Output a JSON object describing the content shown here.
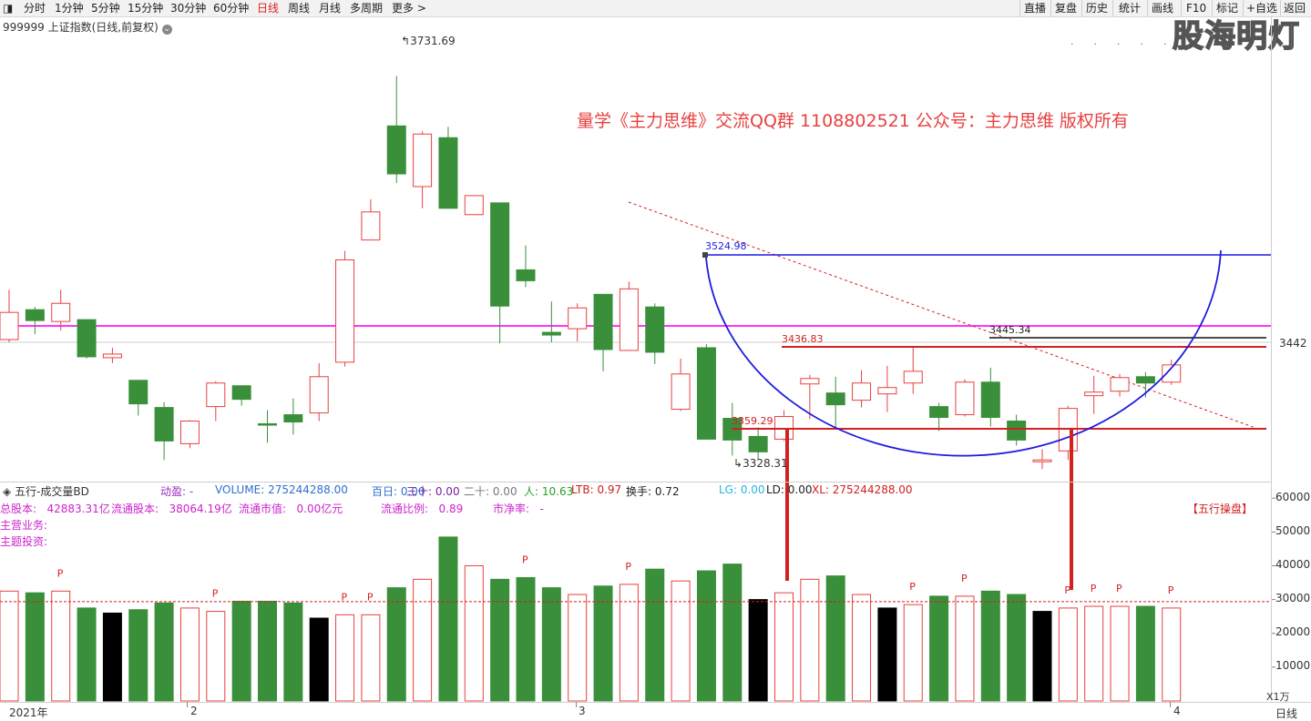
{
  "toolbar": {
    "periods": [
      "分时",
      "1分钟",
      "5分钟",
      "15分钟",
      "30分钟",
      "60分钟",
      "日线",
      "周线",
      "月线",
      "多周期",
      "更多 >"
    ],
    "active_period": "日线",
    "right_buttons": [
      "直播",
      "复盘",
      "历史",
      "统计",
      "画线",
      "F10",
      "标记",
      "+自选",
      "返回"
    ]
  },
  "symbol_title": "999999 上证指数(日线,前复权)",
  "watermark": "股海明灯",
  "copyright": "量学《主力思维》交流QQ群 1108802521  公众号：主力思维 版权所有",
  "price_labels": {
    "high": "3731.69",
    "low": "3328.31",
    "gap_top": "3524.98",
    "mid": "3436.83",
    "mid2": "3445.34",
    "bottom": "3359.29",
    "axis_current": "3442"
  },
  "lower_panel": {
    "indicator": "五行-成交量BD",
    "fields": [
      {
        "label": "动盈:",
        "value": "-",
        "color": "#9b30c0"
      },
      {
        "label": "VOLUME:",
        "value": "275244288.00",
        "color": "#2f6fd0"
      },
      {
        "label": "百日:",
        "value": "0.00",
        "color": "#2f6fd0"
      },
      {
        "label": "三十:",
        "value": "0.00",
        "color": "#7a1fa0"
      },
      {
        "label": "二十:",
        "value": "0.00",
        "color": "#777"
      },
      {
        "label": "人:",
        "value": "10.63",
        "color": "#2a9d2a"
      },
      {
        "label": "LTB:",
        "value": "0.97",
        "color": "#d02020"
      },
      {
        "label": "换手:",
        "value": "0.72",
        "color": "#222"
      },
      {
        "label": "LG:",
        "value": "0.00",
        "color": "#29b6e0"
      },
      {
        "label": "LD:",
        "value": "0.00",
        "color": "#222"
      },
      {
        "label": "XL:",
        "value": "275244288.00",
        "color": "#d02020"
      }
    ],
    "fundamentals": [
      {
        "label": "总股本:",
        "value": "42883.31亿"
      },
      {
        "label": "流通股本:",
        "value": "38064.19亿"
      },
      {
        "label": "流通市值:",
        "value": "0.00亿元"
      },
      {
        "label": "流通比例:",
        "value": "0.89"
      },
      {
        "label": "市净率:",
        "value": "-"
      }
    ],
    "business": "主营业务:",
    "theme": "主题投资:",
    "wuxing_button": "【五行操盘】",
    "axis": [
      "60000",
      "50000",
      "40000",
      "30000",
      "20000",
      "10000"
    ],
    "axis_unit": "X1万"
  },
  "date_axis": [
    "2021年",
    "2",
    "3",
    "4"
  ],
  "bottom_right_label": "日线",
  "colors": {
    "up": "#e84040",
    "down": "#3a8f3a",
    "pink": "#ff33ff",
    "blue": "#1c1ce0",
    "marker": "#d32020"
  },
  "chart_data": {
    "type": "candlestick",
    "candles": [
      {
        "o": 3445,
        "c": 3475,
        "h": 3500,
        "l": 3442,
        "dir": "up"
      },
      {
        "o": 3478,
        "c": 3466,
        "h": 3481,
        "l": 3451,
        "dir": "down"
      },
      {
        "o": 3465,
        "c": 3485,
        "h": 3500,
        "l": 3455,
        "dir": "up"
      },
      {
        "o": 3467,
        "c": 3426,
        "h": 3467,
        "l": 3424,
        "dir": "down"
      },
      {
        "o": 3425,
        "c": 3429,
        "h": 3436,
        "l": 3419,
        "dir": "up"
      },
      {
        "o": 3400,
        "c": 3374,
        "h": 3400,
        "l": 3361,
        "dir": "down"
      },
      {
        "o": 3370,
        "c": 3333,
        "h": 3376,
        "l": 3312,
        "dir": "down"
      },
      {
        "o": 3330,
        "c": 3355,
        "h": 3356,
        "l": 3325,
        "dir": "up"
      },
      {
        "o": 3371,
        "c": 3397,
        "h": 3399,
        "l": 3355,
        "dir": "up"
      },
      {
        "o": 3394,
        "c": 3379,
        "h": 3394,
        "l": 3372,
        "dir": "down"
      },
      {
        "o": 3352,
        "c": 3351,
        "h": 3367,
        "l": 3331,
        "dir": "down"
      },
      {
        "o": 3362,
        "c": 3354,
        "h": 3380,
        "l": 3340,
        "dir": "down"
      },
      {
        "o": 3364,
        "c": 3404,
        "h": 3419,
        "l": 3355,
        "dir": "up"
      },
      {
        "o": 3420,
        "c": 3533,
        "h": 3543,
        "l": 3415,
        "dir": "up"
      },
      {
        "o": 3555,
        "c": 3586,
        "h": 3600,
        "l": 3555,
        "dir": "up"
      },
      {
        "o": 3628,
        "c": 3681,
        "h": 3736,
        "l": 3618,
        "dir": "down"
      },
      {
        "o": 3614,
        "c": 3672,
        "h": 3675,
        "l": 3590,
        "dir": "up"
      },
      {
        "o": 3668,
        "c": 3590,
        "h": 3680,
        "l": 3590,
        "dir": "down"
      },
      {
        "o": 3583,
        "c": 3604,
        "h": 3604,
        "l": 3583,
        "dir": "up"
      },
      {
        "o": 3596,
        "c": 3482,
        "h": 3596,
        "l": 3441,
        "dir": "down"
      },
      {
        "o": 3522,
        "c": 3510,
        "h": 3549,
        "l": 3503,
        "dir": "down"
      },
      {
        "o": 3453,
        "c": 3450,
        "h": 3487,
        "l": 3442,
        "dir": "down"
      },
      {
        "o": 3457,
        "c": 3480,
        "h": 3485,
        "l": 3443,
        "dir": "up"
      },
      {
        "o": 3495,
        "c": 3434,
        "h": 3495,
        "l": 3410,
        "dir": "down"
      },
      {
        "o": 3433,
        "c": 3501,
        "h": 3509,
        "l": 3433,
        "dir": "up"
      },
      {
        "o": 3481,
        "c": 3431,
        "h": 3485,
        "l": 3418,
        "dir": "down"
      },
      {
        "o": 3368,
        "c": 3407,
        "h": 3424,
        "l": 3366,
        "dir": "up"
      },
      {
        "o": 3436,
        "c": 3335,
        "h": 3440,
        "l": 3335,
        "dir": "down"
      },
      {
        "o": 3334,
        "c": 3358,
        "h": 3375,
        "l": 3317,
        "dir": "down"
      },
      {
        "o": 3338,
        "c": 3321,
        "h": 3348,
        "l": 3313,
        "dir": "down"
      },
      {
        "o": 3335,
        "c": 3360,
        "h": 3367,
        "l": 3333,
        "dir": "up"
      },
      {
        "o": 3402,
        "c": 3396,
        "h": 3406,
        "l": 3357,
        "dir": "up"
      },
      {
        "o": 3386,
        "c": 3373,
        "h": 3404,
        "l": 3348,
        "dir": "down"
      },
      {
        "o": 3378,
        "c": 3397,
        "h": 3411,
        "l": 3370,
        "dir": "up"
      },
      {
        "o": 3385,
        "c": 3392,
        "h": 3416,
        "l": 3365,
        "dir": "up"
      },
      {
        "o": 3410,
        "c": 3397,
        "h": 3437,
        "l": 3385,
        "dir": "up"
      },
      {
        "o": 3371,
        "c": 3359,
        "h": 3375,
        "l": 3344,
        "dir": "down"
      },
      {
        "o": 3398,
        "c": 3362,
        "h": 3401,
        "l": 3360,
        "dir": "up"
      },
      {
        "o": 3398,
        "c": 3359,
        "h": 3414,
        "l": 3349,
        "dir": "down"
      },
      {
        "o": 3355,
        "c": 3334,
        "h": 3362,
        "l": 3328,
        "dir": "down"
      },
      {
        "o": 3310,
        "c": 3312,
        "h": 3324,
        "l": 3302,
        "dir": "up"
      },
      {
        "o": 3322,
        "c": 3369,
        "h": 3372,
        "l": 3312,
        "dir": "up"
      },
      {
        "o": 3383,
        "c": 3387,
        "h": 3405,
        "l": 3363,
        "dir": "up"
      },
      {
        "o": 3388,
        "c": 3403,
        "h": 3407,
        "l": 3382,
        "dir": "up"
      },
      {
        "o": 3404,
        "c": 3397,
        "h": 3409,
        "l": 3381,
        "dir": "down"
      },
      {
        "o": 3398,
        "c": 3417,
        "h": 3423,
        "l": 3395,
        "dir": "up"
      }
    ],
    "volumes": [
      {
        "v": 32500,
        "dir": "up"
      },
      {
        "v": 32000,
        "dir": "down"
      },
      {
        "v": 32500,
        "dir": "up"
      },
      {
        "v": 27500,
        "dir": "down"
      },
      {
        "v": 26000,
        "dir": "black"
      },
      {
        "v": 27000,
        "dir": "down"
      },
      {
        "v": 29000,
        "dir": "down"
      },
      {
        "v": 27500,
        "dir": "up"
      },
      {
        "v": 26500,
        "dir": "up"
      },
      {
        "v": 29500,
        "dir": "down"
      },
      {
        "v": 29500,
        "dir": "down"
      },
      {
        "v": 29000,
        "dir": "down"
      },
      {
        "v": 24500,
        "dir": "black"
      },
      {
        "v": 25500,
        "dir": "up"
      },
      {
        "v": 25500,
        "dir": "up"
      },
      {
        "v": 33500,
        "dir": "down"
      },
      {
        "v": 36000,
        "dir": "up"
      },
      {
        "v": 48500,
        "dir": "down"
      },
      {
        "v": 40000,
        "dir": "up"
      },
      {
        "v": 36000,
        "dir": "down"
      },
      {
        "v": 36500,
        "dir": "down"
      },
      {
        "v": 33500,
        "dir": "down"
      },
      {
        "v": 31500,
        "dir": "up"
      },
      {
        "v": 34000,
        "dir": "down"
      },
      {
        "v": 34500,
        "dir": "up"
      },
      {
        "v": 39000,
        "dir": "down"
      },
      {
        "v": 35500,
        "dir": "up"
      },
      {
        "v": 38500,
        "dir": "down"
      },
      {
        "v": 40500,
        "dir": "down"
      },
      {
        "v": 30000,
        "dir": "black"
      },
      {
        "v": 32000,
        "dir": "up"
      },
      {
        "v": 36000,
        "dir": "up"
      },
      {
        "v": 37000,
        "dir": "down"
      },
      {
        "v": 31500,
        "dir": "up"
      },
      {
        "v": 27500,
        "dir": "black"
      },
      {
        "v": 28500,
        "dir": "up"
      },
      {
        "v": 31000,
        "dir": "down"
      },
      {
        "v": 31000,
        "dir": "up"
      },
      {
        "v": 32500,
        "dir": "down"
      },
      {
        "v": 31500,
        "dir": "down"
      },
      {
        "v": 26500,
        "dir": "black"
      },
      {
        "v": 27500,
        "dir": "up"
      },
      {
        "v": 28000,
        "dir": "up"
      },
      {
        "v": 28000,
        "dir": "up"
      },
      {
        "v": 28000,
        "dir": "down"
      },
      {
        "v": 27500,
        "dir": "up"
      }
    ],
    "p_markers": [
      2,
      8,
      13,
      14,
      20,
      24,
      35,
      37,
      41,
      42,
      43,
      45
    ],
    "volume_ma": 27500,
    "horizontal_lines": [
      {
        "price": 3442,
        "color": "pink"
      },
      {
        "price": 3524.98,
        "color": "blue"
      },
      {
        "price": 3445.34,
        "color": "black"
      },
      {
        "price": 3436.83,
        "color": "red"
      },
      {
        "price": 3359.29,
        "color": "red"
      }
    ]
  }
}
